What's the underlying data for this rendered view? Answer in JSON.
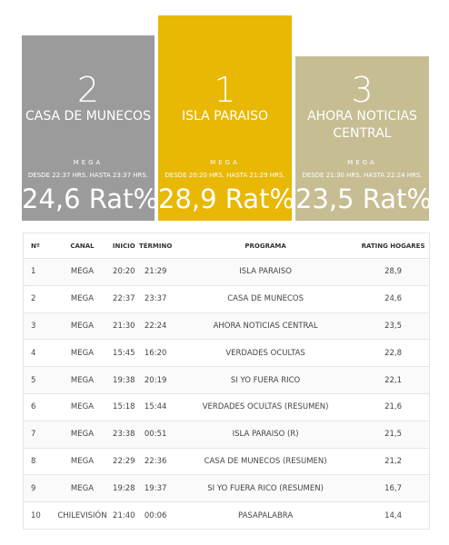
{
  "podium": [
    {
      "rank": "2",
      "program": "CASA DE MUNECOS",
      "channel": "MEGA",
      "time": "DESDE 22:37 HRS. HASTA 23:37 HRS.",
      "rating": "24,6 Rat%",
      "color": "#9b9b9b"
    },
    {
      "rank": "1",
      "program": "ISLA PARAISO",
      "channel": "MEGA",
      "time": "DESDE 20:20 HRS. HASTA 21:29 HRS.",
      "rating": "28,9 Rat%",
      "color": "#e8b805"
    },
    {
      "rank": "3",
      "program": "AHORA NOTICIAS CENTRAL",
      "channel": "MEGA",
      "time": "DESDE 21:30 HRS. HASTA 22:24 HRS.",
      "rating": "23,5 Rat%",
      "color": "#c6bd93"
    }
  ],
  "table": {
    "headers": [
      "Nº",
      "CANAL",
      "INICIO",
      "TÉRMINO",
      "PROGRAMA",
      "RATING HOGARES"
    ],
    "rows": [
      [
        "1",
        "MEGA",
        "20:20",
        "21:29",
        "ISLA PARAISO",
        "28,9"
      ],
      [
        "2",
        "MEGA",
        "22:37",
        "23:37",
        "CASA DE MUNECOS",
        "24,6"
      ],
      [
        "3",
        "MEGA",
        "21:30",
        "22:24",
        "AHORA NOTICIAS CENTRAL",
        "23,5"
      ],
      [
        "4",
        "MEGA",
        "15:45",
        "16:20",
        "VERDADES OCULTAS",
        "22,8"
      ],
      [
        "5",
        "MEGA",
        "19:38",
        "20:19",
        "SI YO FUERA RICO",
        "22,1"
      ],
      [
        "6",
        "MEGA",
        "15:18",
        "15:44",
        "VERDADES OCULTAS (RESUMEN)",
        "21,6"
      ],
      [
        "7",
        "MEGA",
        "23:38",
        "00:51",
        "ISLA PARAISO (R)",
        "21,5"
      ],
      [
        "8",
        "MEGA",
        "22:29",
        "22:36",
        "CASA DE MUNECOS (RESUMEN)",
        "21,2"
      ],
      [
        "9",
        "MEGA",
        "19:28",
        "19:37",
        "SI YO FUERA RICO (RESUMEN)",
        "16,7"
      ],
      [
        "10",
        "CHILEVISIÓN",
        "21:40",
        "00:06",
        "PASAPALABRA",
        "14,4"
      ]
    ]
  }
}
